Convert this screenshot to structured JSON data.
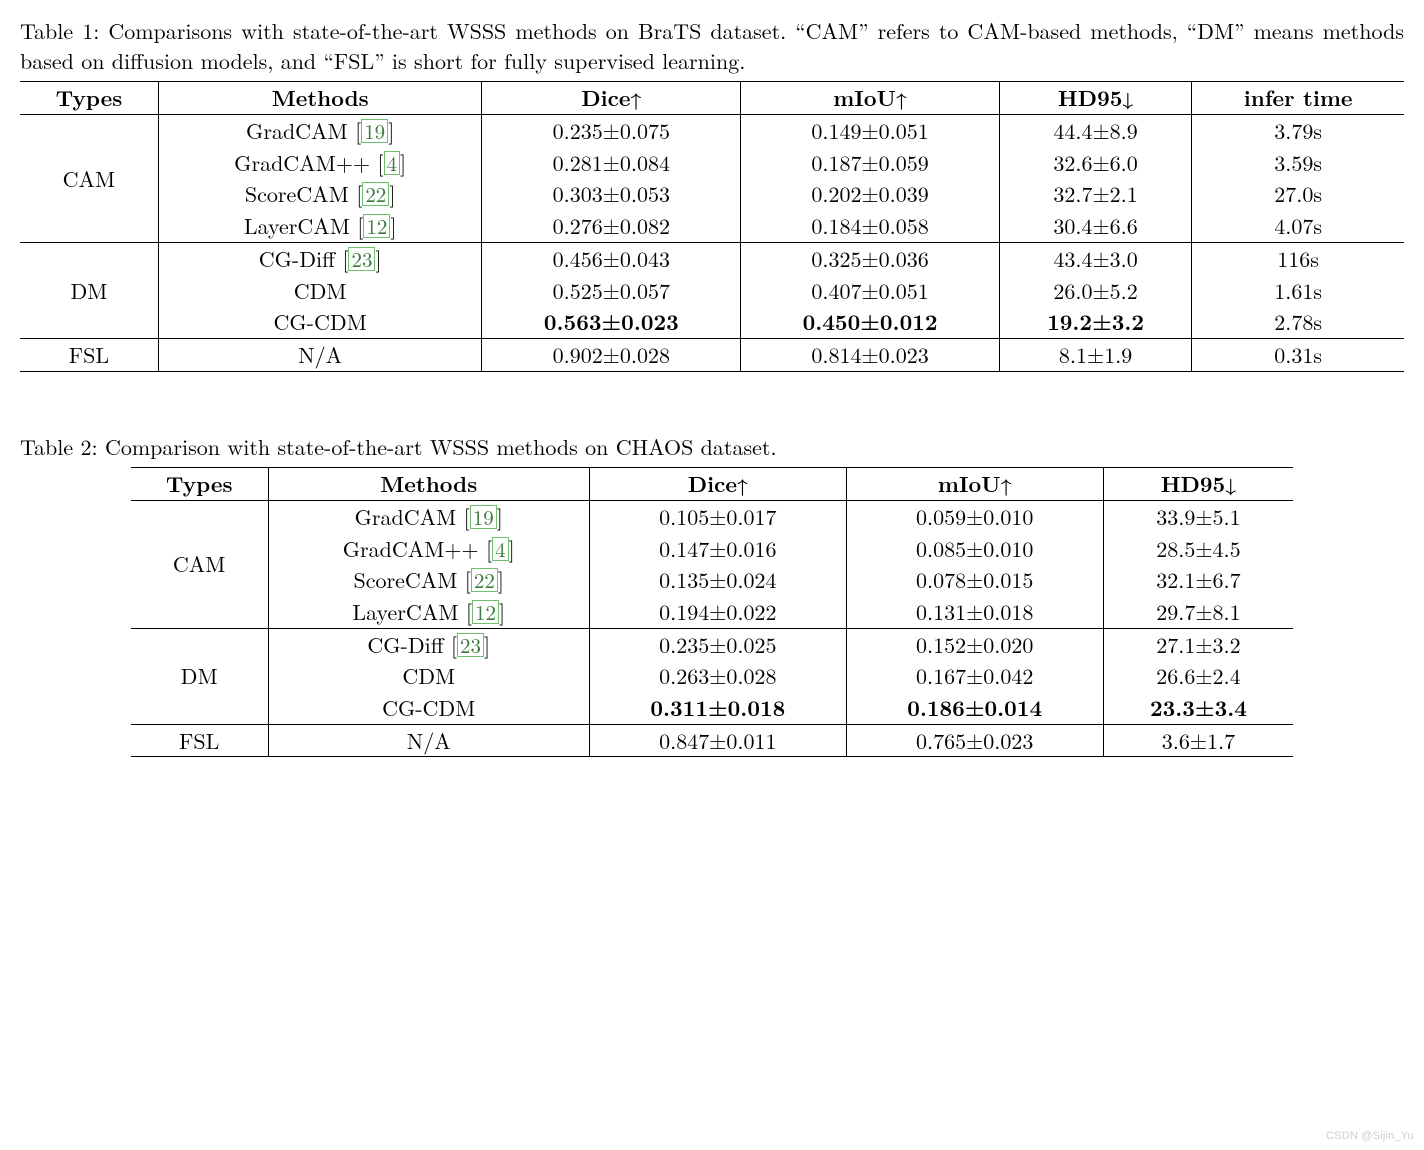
{
  "table1": {
    "caption": "Table 1: Comparisons with state-of-the-art WSSS methods on BraTS dataset. “CAM” refers to CAM-based methods, “DM” means methods based on diffusion models, and “FSL” is short for fully supervised learning.",
    "headers": {
      "types": "Types",
      "methods": "Methods",
      "dice": "Dice",
      "miou": "mIoU",
      "hd95": "HD95",
      "infer": "infer time"
    },
    "groups": [
      {
        "type": "CAM",
        "rows": [
          {
            "method": "GradCAM",
            "cite": "19",
            "dice": "0.235±0.075",
            "miou": "0.149±0.051",
            "hd95": "44.4±8.9",
            "infer": "3.79s"
          },
          {
            "method": "GradCAM++",
            "cite": "4",
            "dice": "0.281±0.084",
            "miou": "0.187±0.059",
            "hd95": "32.6±6.0",
            "infer": "3.59s"
          },
          {
            "method": "ScoreCAM",
            "cite": "22",
            "dice": "0.303±0.053",
            "miou": "0.202±0.039",
            "hd95": "32.7±2.1",
            "infer": "27.0s"
          },
          {
            "method": "LayerCAM",
            "cite": "12",
            "dice": "0.276±0.082",
            "miou": "0.184±0.058",
            "hd95": "30.4±6.6",
            "infer": "4.07s"
          }
        ]
      },
      {
        "type": "DM",
        "rows": [
          {
            "method": "CG-Diff",
            "cite": "23",
            "dice": "0.456±0.043",
            "miou": "0.325±0.036",
            "hd95": "43.4±3.0",
            "infer": "116s"
          },
          {
            "method": "CDM",
            "cite": "",
            "dice": "0.525±0.057",
            "miou": "0.407±0.051",
            "hd95": "26.0±5.2",
            "infer": "1.61s"
          },
          {
            "method": "CG-CDM",
            "cite": "",
            "dice": "0.563±0.023",
            "miou": "0.450±0.012",
            "hd95": "19.2±3.2",
            "infer": "2.78s",
            "bold": true
          }
        ]
      },
      {
        "type": "FSL",
        "rows": [
          {
            "method": "N/A",
            "cite": "",
            "dice": "0.902±0.028",
            "miou": "0.814±0.023",
            "hd95": "8.1±1.9",
            "infer": "0.31s"
          }
        ]
      }
    ]
  },
  "table2": {
    "caption": "Table 2: Comparison with state-of-the-art WSSS methods on CHAOS dataset.",
    "headers": {
      "types": "Types",
      "methods": "Methods",
      "dice": "Dice",
      "miou": "mIoU",
      "hd95": "HD95"
    },
    "groups": [
      {
        "type": "CAM",
        "rows": [
          {
            "method": "GradCAM",
            "cite": "19",
            "dice": "0.105±0.017",
            "miou": "0.059±0.010",
            "hd95": "33.9±5.1"
          },
          {
            "method": "GradCAM++",
            "cite": "4",
            "dice": "0.147±0.016",
            "miou": "0.085±0.010",
            "hd95": "28.5±4.5"
          },
          {
            "method": "ScoreCAM",
            "cite": "22",
            "dice": "0.135±0.024",
            "miou": "0.078±0.015",
            "hd95": "32.1±6.7"
          },
          {
            "method": "LayerCAM",
            "cite": "12",
            "dice": "0.194±0.022",
            "miou": "0.131±0.018",
            "hd95": "29.7±8.1"
          }
        ]
      },
      {
        "type": "DM",
        "rows": [
          {
            "method": "CG-Diff",
            "cite": "23",
            "dice": "0.235±0.025",
            "miou": "0.152±0.020",
            "hd95": "27.1±3.2"
          },
          {
            "method": "CDM",
            "cite": "",
            "dice": "0.263±0.028",
            "miou": "0.167±0.042",
            "hd95": "26.6±2.4"
          },
          {
            "method": "CG-CDM",
            "cite": "",
            "dice": "0.311±0.018",
            "miou": "0.186±0.014",
            "hd95": "23.3±3.4",
            "bold": true
          }
        ]
      },
      {
        "type": "FSL",
        "rows": [
          {
            "method": "N/A",
            "cite": "",
            "dice": "0.847±0.011",
            "miou": "0.765±0.023",
            "hd95": "3.6±1.7"
          }
        ]
      }
    ]
  },
  "watermark": "CSDN @Sijin_Yu",
  "colors": {
    "cite_text": "#3a7a3a",
    "cite_border": "#6fbf6f",
    "watermark": "#cfcfcf",
    "text": "#000000",
    "bg": "#ffffff"
  }
}
